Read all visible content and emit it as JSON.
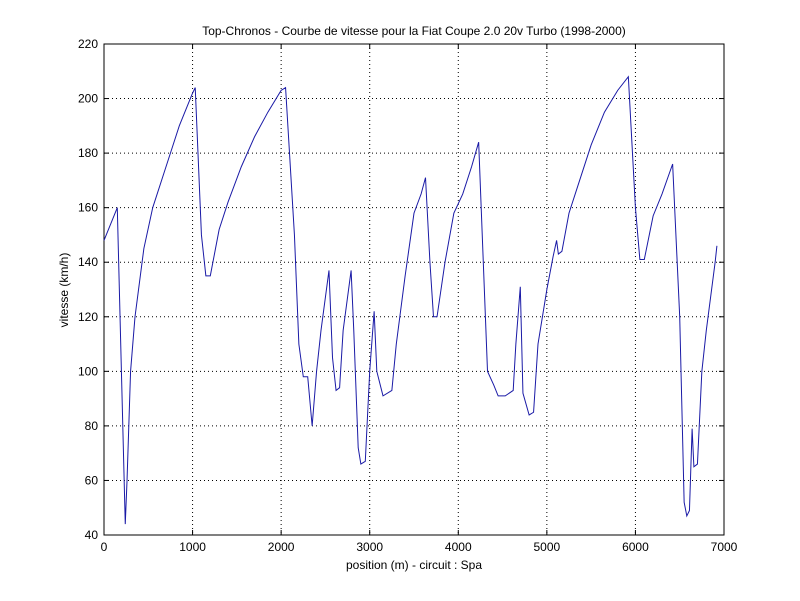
{
  "chart_data": {
    "type": "line",
    "title": "Top-Chronos - Courbe de vitesse pour la Fiat Coupe 2.0 20v Turbo (1998-2000)",
    "xlabel": "position (m) - circuit : Spa",
    "ylabel": "vitesse (km/h)",
    "color": "#1a1aa6",
    "grid": true,
    "xlim": [
      0,
      7000
    ],
    "xticks": [
      0,
      1000,
      2000,
      3000,
      4000,
      5000,
      6000,
      7000
    ],
    "ylim": [
      40,
      220
    ],
    "yticks": [
      40,
      60,
      80,
      100,
      120,
      140,
      160,
      180,
      200,
      220
    ],
    "x": [
      0,
      150,
      240,
      260,
      300,
      350,
      450,
      550,
      700,
      850,
      1000,
      1030,
      1100,
      1150,
      1200,
      1300,
      1400,
      1550,
      1700,
      1850,
      2000,
      2050,
      2150,
      2200,
      2250,
      2300,
      2350,
      2400,
      2450,
      2540,
      2580,
      2620,
      2660,
      2700,
      2790,
      2820,
      2870,
      2900,
      2950,
      3000,
      3050,
      3080,
      3150,
      3250,
      3300,
      3400,
      3500,
      3580,
      3630,
      3680,
      3720,
      3760,
      3850,
      3950,
      4050,
      4150,
      4230,
      4330,
      4400,
      4450,
      4530,
      4620,
      4650,
      4700,
      4730,
      4800,
      4850,
      4900,
      5000,
      5070,
      5110,
      5130,
      5170,
      5250,
      5350,
      5500,
      5650,
      5800,
      5920,
      6000,
      6050,
      6100,
      6200,
      6300,
      6420,
      6500,
      6550,
      6580,
      6610,
      6640,
      6660,
      6700,
      6750,
      6800,
      6900,
      6920
    ],
    "values": [
      148,
      160,
      44,
      60,
      100,
      120,
      145,
      160,
      175,
      190,
      202,
      204,
      150,
      135,
      135,
      152,
      162,
      175,
      186,
      195,
      203,
      204,
      150,
      110,
      98,
      98,
      80,
      100,
      115,
      137,
      105,
      93,
      94,
      115,
      137,
      115,
      72,
      66,
      67,
      100,
      122,
      100,
      91,
      93,
      110,
      135,
      158,
      165,
      171,
      140,
      120,
      120,
      140,
      158,
      165,
      175,
      184,
      100,
      95,
      91,
      91,
      93,
      110,
      131,
      92,
      84,
      85,
      110,
      130,
      142,
      148,
      143,
      144,
      158,
      168,
      183,
      195,
      203,
      208,
      160,
      141,
      141,
      157,
      165,
      176,
      120,
      52,
      47,
      49,
      79,
      65,
      66,
      100,
      115,
      140,
      146
    ]
  }
}
